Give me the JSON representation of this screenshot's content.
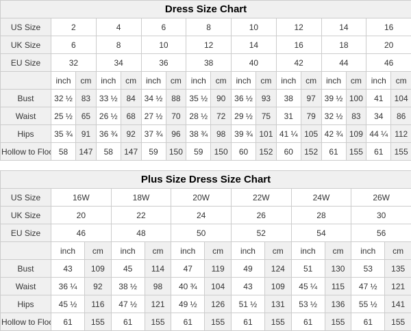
{
  "colors": {
    "header_bg": "#f0f0f0",
    "cell_gray": "#f0f0f0",
    "cell_white": "#ffffff",
    "border": "#cccccc",
    "text": "#333333",
    "title_text": "#000000"
  },
  "tables": [
    {
      "title": "Dress Size Chart",
      "size_rows": [
        {
          "label": "US Size",
          "values": [
            "2",
            "4",
            "6",
            "8",
            "10",
            "12",
            "14",
            "16"
          ]
        },
        {
          "label": "UK Size",
          "values": [
            "6",
            "8",
            "10",
            "12",
            "14",
            "16",
            "18",
            "20"
          ]
        },
        {
          "label": "EU Size",
          "values": [
            "32",
            "34",
            "36",
            "38",
            "40",
            "42",
            "44",
            "46"
          ]
        }
      ],
      "unit_headers": [
        "inch",
        "cm"
      ],
      "measure_rows": [
        {
          "label": "Bust",
          "values": [
            "32 ½",
            "83",
            "33 ½",
            "84",
            "34 ½",
            "88",
            "35 ½",
            "90",
            "36 ½",
            "93",
            "38",
            "97",
            "39 ½",
            "100",
            "41",
            "104"
          ]
        },
        {
          "label": "Waist",
          "values": [
            "25 ½",
            "65",
            "26 ½",
            "68",
            "27 ½",
            "70",
            "28 ½",
            "72",
            "29 ½",
            "75",
            "31",
            "79",
            "32 ½",
            "83",
            "34",
            "86"
          ]
        },
        {
          "label": "Hips",
          "values": [
            "35 ¾",
            "91",
            "36 ¾",
            "92",
            "37 ¾",
            "96",
            "38 ¾",
            "98",
            "39 ¾",
            "101",
            "41 ¼",
            "105",
            "42 ¾",
            "109",
            "44 ¼",
            "112"
          ]
        },
        {
          "label": "Hollow to Floor",
          "values": [
            "58",
            "147",
            "58",
            "147",
            "59",
            "150",
            "59",
            "150",
            "60",
            "152",
            "60",
            "152",
            "61",
            "155",
            "61",
            "155"
          ]
        }
      ]
    },
    {
      "title": "Plus Size Dress Size Chart",
      "size_rows": [
        {
          "label": "US Size",
          "values": [
            "16W",
            "18W",
            "20W",
            "22W",
            "24W",
            "26W"
          ]
        },
        {
          "label": "UK Size",
          "values": [
            "20",
            "22",
            "24",
            "26",
            "28",
            "30"
          ]
        },
        {
          "label": "EU Size",
          "values": [
            "46",
            "48",
            "50",
            "52",
            "54",
            "56"
          ]
        }
      ],
      "unit_headers": [
        "inch",
        "cm"
      ],
      "measure_rows": [
        {
          "label": "Bust",
          "values": [
            "43",
            "109",
            "45",
            "114",
            "47",
            "119",
            "49",
            "124",
            "51",
            "130",
            "53",
            "135"
          ]
        },
        {
          "label": "Waist",
          "values": [
            "36 ¼",
            "92",
            "38 ½",
            "98",
            "40 ¾",
            "104",
            "43",
            "109",
            "45 ¼",
            "115",
            "47 ½",
            "121"
          ]
        },
        {
          "label": "Hips",
          "values": [
            "45 ½",
            "116",
            "47 ½",
            "121",
            "49 ½",
            "126",
            "51 ½",
            "131",
            "53 ½",
            "136",
            "55 ½",
            "141"
          ]
        },
        {
          "label": "Hollow to Floor",
          "values": [
            "61",
            "155",
            "61",
            "155",
            "61",
            "155",
            "61",
            "155",
            "61",
            "155",
            "61",
            "155"
          ]
        }
      ]
    }
  ]
}
